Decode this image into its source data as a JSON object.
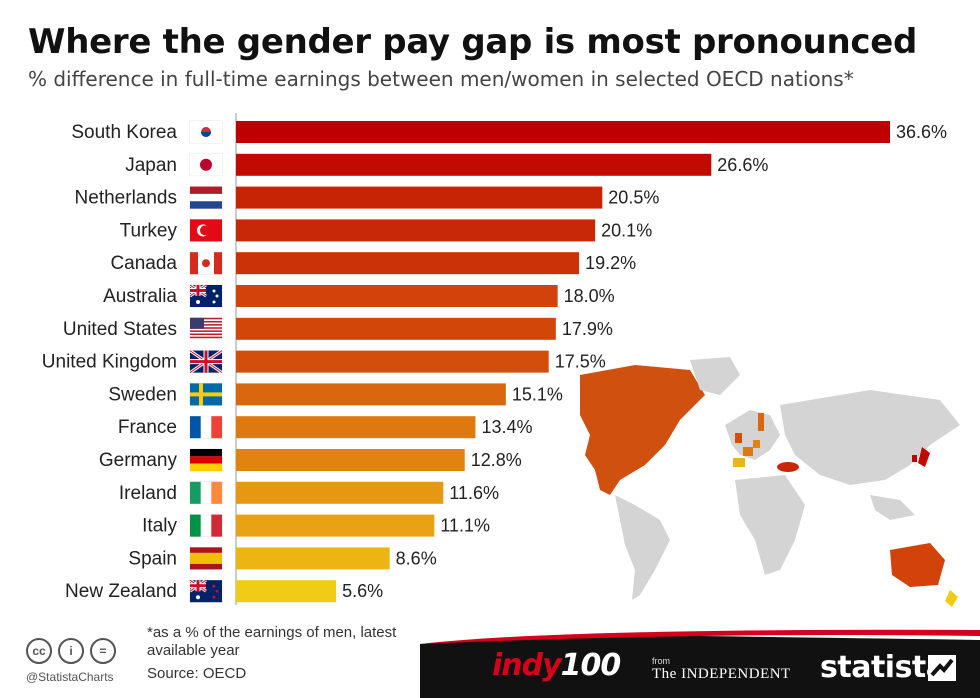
{
  "header": {
    "title": "Where the gender pay gap is most pronounced",
    "subtitle": "% difference in full-time earnings between men/women in selected OECD nations*"
  },
  "chart_data": {
    "type": "bar",
    "orientation": "horizontal",
    "title": "Where the gender pay gap is most pronounced",
    "subtitle": "% difference in full-time earnings between men/women in selected OECD nations*",
    "categories": [
      "South Korea",
      "Japan",
      "Netherlands",
      "Turkey",
      "Canada",
      "Australia",
      "United States",
      "United Kingdom",
      "Sweden",
      "France",
      "Germany",
      "Ireland",
      "Italy",
      "Spain",
      "New Zealand"
    ],
    "values": [
      36.6,
      26.6,
      20.5,
      20.1,
      19.2,
      18.0,
      17.9,
      17.5,
      15.1,
      13.4,
      12.8,
      11.6,
      11.1,
      8.6,
      5.6
    ],
    "labels": [
      "36.6%",
      "26.6%",
      "20.5%",
      "20.1%",
      "19.2%",
      "18.0%",
      "17.9%",
      "17.5%",
      "15.1%",
      "13.4%",
      "12.8%",
      "11.6%",
      "11.1%",
      "8.6%",
      "5.6%"
    ],
    "colors": [
      "#be0000",
      "#c10a02",
      "#c72405",
      "#c92806",
      "#cc3208",
      "#d1430a",
      "#d2460a",
      "#d44e0b",
      "#da660d",
      "#df780f",
      "#e28211",
      "#e69812",
      "#e8a213",
      "#ebb614",
      "#f0cc16"
    ],
    "xlim": [
      0,
      36.6
    ],
    "grid": false,
    "legend": "none"
  },
  "flags": [
    "south-korea-flag",
    "japan-flag",
    "netherlands-flag",
    "turkey-flag",
    "canada-flag",
    "australia-flag",
    "united-states-flag",
    "united-kingdom-flag",
    "sweden-flag",
    "france-flag",
    "germany-flag",
    "ireland-flag",
    "italy-flag",
    "spain-flag",
    "new-zealand-flag"
  ],
  "map": {
    "highlight_color": "#d05010",
    "base_color": "#d4d4d4"
  },
  "footer": {
    "cc_icons": [
      "cc",
      "i",
      "="
    ],
    "handle": "@StatistaCharts",
    "note": "*as a % of the earnings of men, latest available year",
    "source": "Source: OECD",
    "indy_part1": "indy",
    "indy_part2": "100",
    "from": "from",
    "independent": "The INDEPENDENT",
    "statista": "statista",
    "background": "#111111"
  }
}
